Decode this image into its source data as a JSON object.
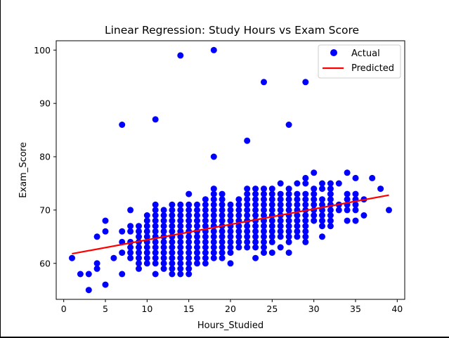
{
  "chart_data": {
    "type": "scatter",
    "title": "Linear Regression: Study Hours vs Exam Score",
    "xlabel": "Hours_Studied",
    "ylabel": "Exam_Score",
    "xlim": [
      -0.9,
      40.9
    ],
    "ylim": [
      53.25,
      101.75
    ],
    "xticks": [
      0,
      5,
      10,
      15,
      20,
      25,
      30,
      35,
      40
    ],
    "yticks": [
      60,
      70,
      80,
      90,
      100
    ],
    "grid": false,
    "legend_position": "upper-right",
    "colors": {
      "actual": "#0000ff",
      "predicted": "#ff0000"
    },
    "series": [
      {
        "name": "Actual",
        "kind": "scatter",
        "points": [
          [
            1,
            61
          ],
          [
            2,
            58
          ],
          [
            3,
            58
          ],
          [
            3,
            55
          ],
          [
            4,
            60
          ],
          [
            4,
            59
          ],
          [
            4,
            65
          ],
          [
            5,
            68
          ],
          [
            5,
            66
          ],
          [
            5,
            56
          ],
          [
            6,
            61
          ],
          [
            7,
            66
          ],
          [
            7,
            64
          ],
          [
            7,
            62
          ],
          [
            7,
            58
          ],
          [
            7,
            86
          ],
          [
            8,
            70
          ],
          [
            8,
            67
          ],
          [
            8,
            66
          ],
          [
            8,
            64
          ],
          [
            8,
            63
          ],
          [
            8,
            62
          ],
          [
            8,
            61
          ],
          [
            9,
            67
          ],
          [
            9,
            66
          ],
          [
            9,
            65
          ],
          [
            9,
            64
          ],
          [
            9,
            63
          ],
          [
            9,
            62
          ],
          [
            9,
            61
          ],
          [
            9,
            60
          ],
          [
            9,
            59
          ],
          [
            10,
            69
          ],
          [
            10,
            68
          ],
          [
            10,
            67
          ],
          [
            10,
            66
          ],
          [
            10,
            65
          ],
          [
            10,
            64
          ],
          [
            10,
            63
          ],
          [
            10,
            62
          ],
          [
            10,
            61
          ],
          [
            10,
            60
          ],
          [
            11,
            71
          ],
          [
            11,
            70
          ],
          [
            11,
            69
          ],
          [
            11,
            68
          ],
          [
            11,
            67
          ],
          [
            11,
            66
          ],
          [
            11,
            65
          ],
          [
            11,
            64
          ],
          [
            11,
            63
          ],
          [
            11,
            62
          ],
          [
            11,
            61
          ],
          [
            11,
            60
          ],
          [
            11,
            58
          ],
          [
            11,
            87
          ],
          [
            12,
            70
          ],
          [
            12,
            69
          ],
          [
            12,
            68
          ],
          [
            12,
            67
          ],
          [
            12,
            66
          ],
          [
            12,
            65
          ],
          [
            12,
            64
          ],
          [
            12,
            63
          ],
          [
            12,
            62
          ],
          [
            12,
            61
          ],
          [
            12,
            60
          ],
          [
            12,
            59
          ],
          [
            13,
            71
          ],
          [
            13,
            70
          ],
          [
            13,
            69
          ],
          [
            13,
            68
          ],
          [
            13,
            67
          ],
          [
            13,
            66
          ],
          [
            13,
            65
          ],
          [
            13,
            64
          ],
          [
            13,
            63
          ],
          [
            13,
            62
          ],
          [
            13,
            61
          ],
          [
            13,
            60
          ],
          [
            13,
            59
          ],
          [
            13,
            58
          ],
          [
            14,
            71
          ],
          [
            14,
            70
          ],
          [
            14,
            69
          ],
          [
            14,
            68
          ],
          [
            14,
            67
          ],
          [
            14,
            66
          ],
          [
            14,
            65
          ],
          [
            14,
            64
          ],
          [
            14,
            63
          ],
          [
            14,
            62
          ],
          [
            14,
            61
          ],
          [
            14,
            60
          ],
          [
            14,
            59
          ],
          [
            14,
            58
          ],
          [
            14,
            99
          ],
          [
            15,
            73
          ],
          [
            15,
            71
          ],
          [
            15,
            70
          ],
          [
            15,
            69
          ],
          [
            15,
            68
          ],
          [
            15,
            67
          ],
          [
            15,
            66
          ],
          [
            15,
            65
          ],
          [
            15,
            64
          ],
          [
            15,
            63
          ],
          [
            15,
            62
          ],
          [
            15,
            61
          ],
          [
            15,
            60
          ],
          [
            15,
            59
          ],
          [
            15,
            58
          ],
          [
            16,
            71
          ],
          [
            16,
            70
          ],
          [
            16,
            69
          ],
          [
            16,
            68
          ],
          [
            16,
            67
          ],
          [
            16,
            66
          ],
          [
            16,
            65
          ],
          [
            16,
            64
          ],
          [
            16,
            63
          ],
          [
            16,
            62
          ],
          [
            16,
            61
          ],
          [
            16,
            60
          ],
          [
            17,
            72
          ],
          [
            17,
            71
          ],
          [
            17,
            70
          ],
          [
            17,
            69
          ],
          [
            17,
            68
          ],
          [
            17,
            67
          ],
          [
            17,
            66
          ],
          [
            17,
            65
          ],
          [
            17,
            64
          ],
          [
            17,
            63
          ],
          [
            17,
            62
          ],
          [
            17,
            61
          ],
          [
            17,
            60
          ],
          [
            18,
            74
          ],
          [
            18,
            73
          ],
          [
            18,
            72
          ],
          [
            18,
            71
          ],
          [
            18,
            70
          ],
          [
            18,
            69
          ],
          [
            18,
            68
          ],
          [
            18,
            67
          ],
          [
            18,
            66
          ],
          [
            18,
            65
          ],
          [
            18,
            64
          ],
          [
            18,
            63
          ],
          [
            18,
            62
          ],
          [
            18,
            61
          ],
          [
            18,
            80
          ],
          [
            18,
            100
          ],
          [
            19,
            73
          ],
          [
            19,
            72
          ],
          [
            19,
            71
          ],
          [
            19,
            70
          ],
          [
            19,
            69
          ],
          [
            19,
            68
          ],
          [
            19,
            67
          ],
          [
            19,
            66
          ],
          [
            19,
            65
          ],
          [
            19,
            64
          ],
          [
            19,
            63
          ],
          [
            19,
            62
          ],
          [
            19,
            61
          ],
          [
            20,
            71
          ],
          [
            20,
            70
          ],
          [
            20,
            69
          ],
          [
            20,
            68
          ],
          [
            20,
            67
          ],
          [
            20,
            66
          ],
          [
            20,
            65
          ],
          [
            20,
            64
          ],
          [
            20,
            63
          ],
          [
            20,
            62
          ],
          [
            20,
            60
          ],
          [
            21,
            72
          ],
          [
            21,
            71
          ],
          [
            21,
            70
          ],
          [
            21,
            69
          ],
          [
            21,
            68
          ],
          [
            21,
            67
          ],
          [
            21,
            66
          ],
          [
            21,
            65
          ],
          [
            21,
            64
          ],
          [
            21,
            63
          ],
          [
            22,
            74
          ],
          [
            22,
            73
          ],
          [
            22,
            72
          ],
          [
            22,
            71
          ],
          [
            22,
            70
          ],
          [
            22,
            69
          ],
          [
            22,
            68
          ],
          [
            22,
            67
          ],
          [
            22,
            66
          ],
          [
            22,
            65
          ],
          [
            22,
            64
          ],
          [
            22,
            63
          ],
          [
            22,
            83
          ],
          [
            23,
            74
          ],
          [
            23,
            73
          ],
          [
            23,
            72
          ],
          [
            23,
            71
          ],
          [
            23,
            70
          ],
          [
            23,
            69
          ],
          [
            23,
            68
          ],
          [
            23,
            67
          ],
          [
            23,
            66
          ],
          [
            23,
            65
          ],
          [
            23,
            64
          ],
          [
            23,
            63
          ],
          [
            23,
            61
          ],
          [
            24,
            74
          ],
          [
            24,
            73
          ],
          [
            24,
            72
          ],
          [
            24,
            71
          ],
          [
            24,
            70
          ],
          [
            24,
            69
          ],
          [
            24,
            68
          ],
          [
            24,
            67
          ],
          [
            24,
            66
          ],
          [
            24,
            65
          ],
          [
            24,
            64
          ],
          [
            24,
            63
          ],
          [
            24,
            62
          ],
          [
            24,
            94
          ],
          [
            25,
            74
          ],
          [
            25,
            73
          ],
          [
            25,
            72
          ],
          [
            25,
            71
          ],
          [
            25,
            70
          ],
          [
            25,
            69
          ],
          [
            25,
            68
          ],
          [
            25,
            67
          ],
          [
            25,
            66
          ],
          [
            25,
            65
          ],
          [
            25,
            64
          ],
          [
            25,
            62
          ],
          [
            26,
            75
          ],
          [
            26,
            73
          ],
          [
            26,
            72
          ],
          [
            26,
            71
          ],
          [
            26,
            70
          ],
          [
            26,
            69
          ],
          [
            26,
            68
          ],
          [
            26,
            67
          ],
          [
            26,
            66
          ],
          [
            26,
            65
          ],
          [
            26,
            63
          ],
          [
            27,
            74
          ],
          [
            27,
            73
          ],
          [
            27,
            72
          ],
          [
            27,
            71
          ],
          [
            27,
            70
          ],
          [
            27,
            69
          ],
          [
            27,
            68
          ],
          [
            27,
            67
          ],
          [
            27,
            66
          ],
          [
            27,
            65
          ],
          [
            27,
            64
          ],
          [
            27,
            62
          ],
          [
            27,
            86
          ],
          [
            28,
            75
          ],
          [
            28,
            73
          ],
          [
            28,
            72
          ],
          [
            28,
            71
          ],
          [
            28,
            70
          ],
          [
            28,
            69
          ],
          [
            28,
            68
          ],
          [
            28,
            67
          ],
          [
            28,
            66
          ],
          [
            28,
            65
          ],
          [
            29,
            76
          ],
          [
            29,
            75
          ],
          [
            29,
            73
          ],
          [
            29,
            72
          ],
          [
            29,
            71
          ],
          [
            29,
            70
          ],
          [
            29,
            69
          ],
          [
            29,
            68
          ],
          [
            29,
            67
          ],
          [
            29,
            66
          ],
          [
            29,
            65
          ],
          [
            29,
            64
          ],
          [
            29,
            94
          ],
          [
            30,
            77
          ],
          [
            30,
            74
          ],
          [
            30,
            73
          ],
          [
            30,
            72
          ],
          [
            30,
            71
          ],
          [
            30,
            70
          ],
          [
            30,
            69
          ],
          [
            30,
            68
          ],
          [
            31,
            75
          ],
          [
            31,
            74
          ],
          [
            31,
            72
          ],
          [
            31,
            71
          ],
          [
            31,
            70
          ],
          [
            31,
            69
          ],
          [
            31,
            68
          ],
          [
            31,
            67
          ],
          [
            31,
            65
          ],
          [
            32,
            75
          ],
          [
            32,
            74
          ],
          [
            32,
            73
          ],
          [
            32,
            72
          ],
          [
            32,
            71
          ],
          [
            32,
            70
          ],
          [
            32,
            69
          ],
          [
            32,
            68
          ],
          [
            32,
            67
          ],
          [
            33,
            75
          ],
          [
            33,
            71
          ],
          [
            33,
            70
          ],
          [
            34,
            77
          ],
          [
            34,
            73
          ],
          [
            34,
            72
          ],
          [
            34,
            71
          ],
          [
            34,
            70
          ],
          [
            34,
            68
          ],
          [
            35,
            76
          ],
          [
            35,
            73
          ],
          [
            35,
            72
          ],
          [
            35,
            71
          ],
          [
            35,
            70
          ],
          [
            35,
            68
          ],
          [
            36,
            72
          ],
          [
            36,
            69
          ],
          [
            37,
            76
          ],
          [
            38,
            74
          ],
          [
            39,
            70
          ]
        ]
      },
      {
        "name": "Predicted",
        "kind": "line",
        "points": [
          [
            1,
            61.8
          ],
          [
            39,
            72.8
          ]
        ]
      }
    ]
  }
}
